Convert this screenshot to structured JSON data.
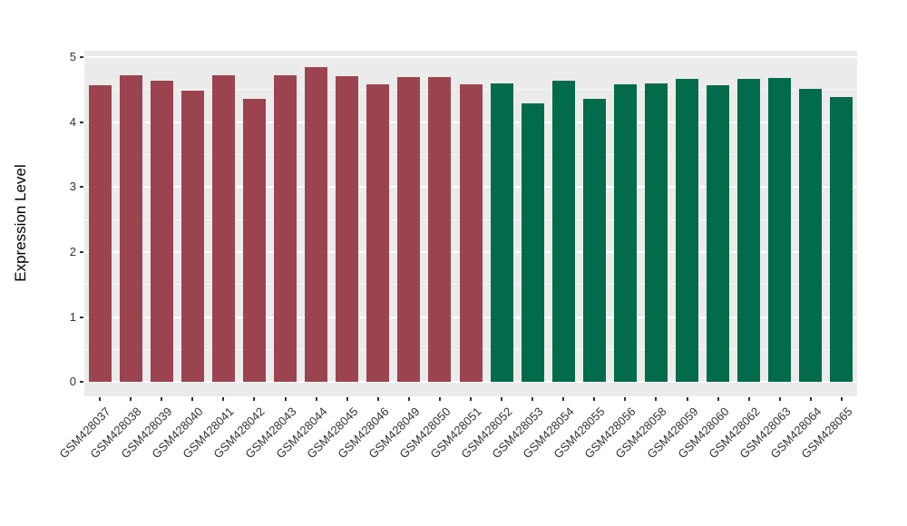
{
  "figure": {
    "background": "#FFFFFF"
  },
  "chart_data": {
    "type": "bar",
    "title": "",
    "xlabel": "",
    "ylabel": "Expression Level",
    "ylim": [
      0,
      5
    ],
    "yticks": [
      0,
      1,
      2,
      3,
      4,
      5
    ],
    "grid": "major-white-minor-white-on-gray-panel",
    "legend": "none",
    "panel_bg": "#EBEBEB",
    "grid_major_color": "#FFFFFF",
    "grid_minor_color": "#F7F7F7",
    "axis_text_color": "#333333",
    "tick_mark_color": "#333333",
    "categories": [
      "GSM428037",
      "GSM428038",
      "GSM428039",
      "GSM428040",
      "GSM428041",
      "GSM428042",
      "GSM428043",
      "GSM428044",
      "GSM428045",
      "GSM428046",
      "GSM428049",
      "GSM428050",
      "GSM428051",
      "GSM428052",
      "GSM428053",
      "GSM428054",
      "GSM428055",
      "GSM428056",
      "GSM428058",
      "GSM428059",
      "GSM428060",
      "GSM428062",
      "GSM428063",
      "GSM428064",
      "GSM428065"
    ],
    "values": [
      4.57,
      4.72,
      4.64,
      4.48,
      4.73,
      4.36,
      4.72,
      4.85,
      4.71,
      4.58,
      4.69,
      4.69,
      4.59,
      4.6,
      4.29,
      4.64,
      4.36,
      4.58,
      4.6,
      4.67,
      4.57,
      4.67,
      4.68,
      4.51,
      4.39
    ],
    "groups": [
      "group1",
      "group1",
      "group1",
      "group1",
      "group1",
      "group1",
      "group1",
      "group1",
      "group1",
      "group1",
      "group1",
      "group1",
      "group1",
      "group2",
      "group2",
      "group2",
      "group2",
      "group2",
      "group2",
      "group2",
      "group2",
      "group2",
      "group2",
      "group2",
      "group2"
    ],
    "group_colors": {
      "group1": "#9B4450",
      "group2": "#016B4B"
    }
  }
}
